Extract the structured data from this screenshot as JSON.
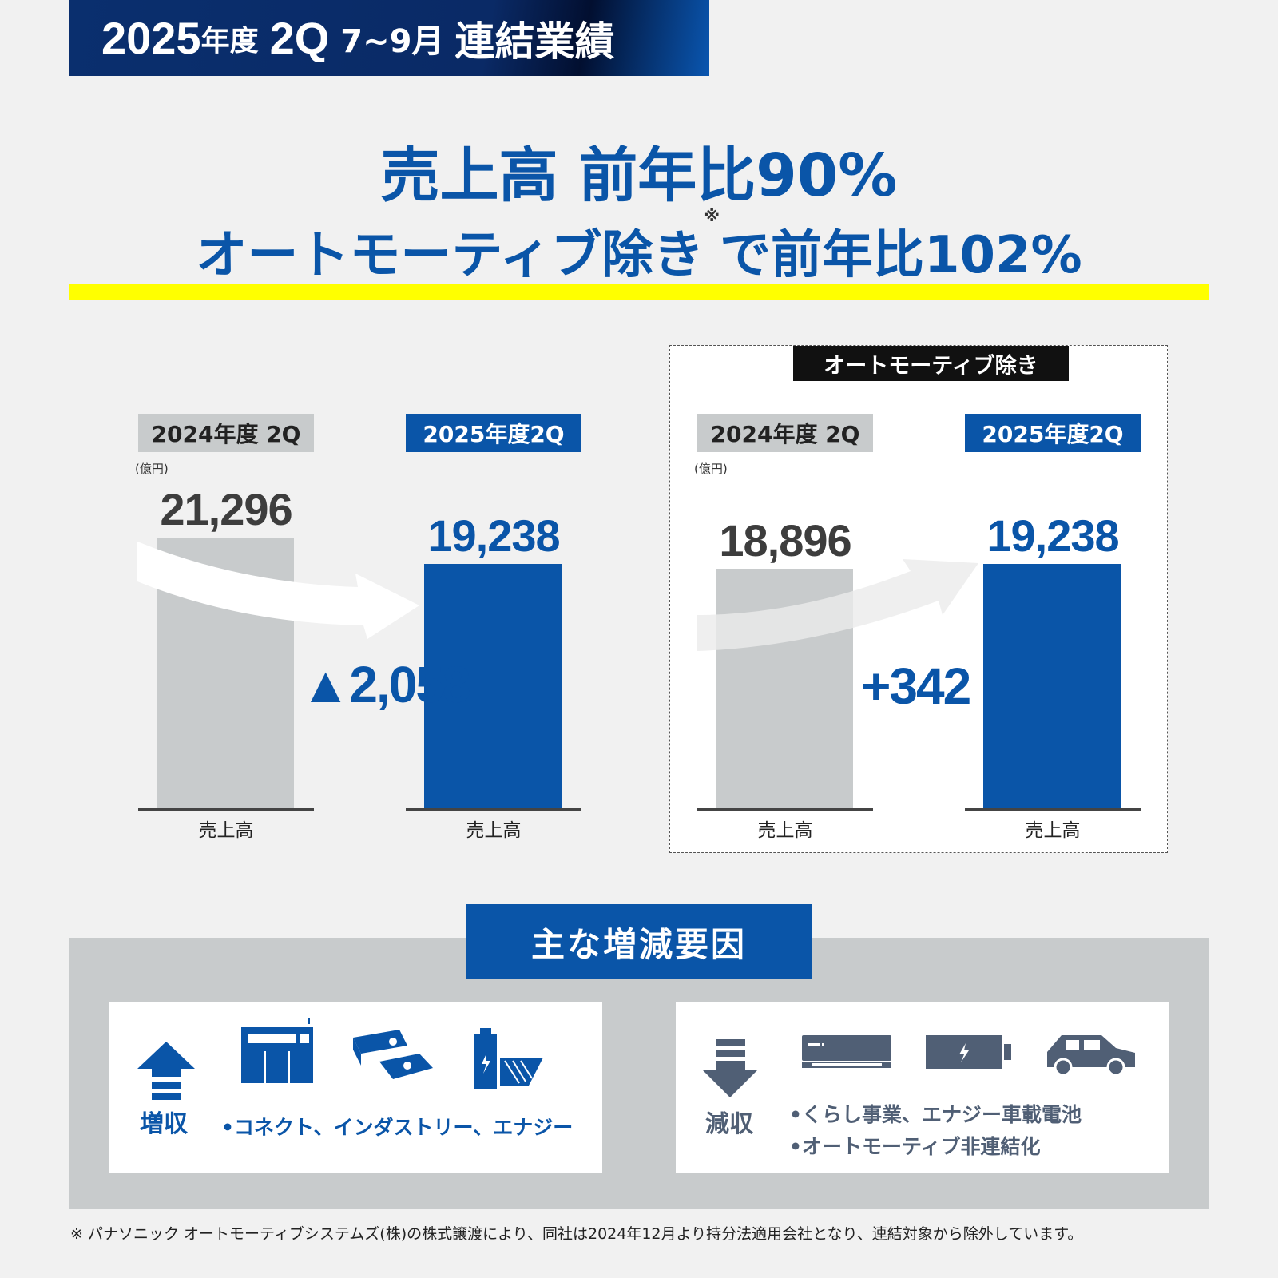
{
  "header": {
    "year": "2025",
    "nendo": "年度",
    "quarter": "2Q",
    "months": "7~9月",
    "title": "連結業績"
  },
  "headline": {
    "line1": "売上高 前年比90%",
    "line2_a": "オートモーティブ除き",
    "line2_mark": "※",
    "line2_b": "で前年比102%"
  },
  "colors": {
    "brand_blue": "#0a55a8",
    "prior_gray": "#c8cbcc",
    "highlight": "#ffff00",
    "decrease_slate": "#505f75"
  },
  "chart_data": [
    {
      "type": "bar",
      "title": "",
      "unit": "(億円)",
      "categories": [
        "2024年度 2Q",
        "2025年度2Q"
      ],
      "axis_labels": [
        "売上高",
        "売上高"
      ],
      "values": [
        21296,
        19238
      ],
      "value_labels": [
        "21,296",
        "19,238"
      ],
      "difference_label": "▲2,058",
      "arrow": "down"
    },
    {
      "type": "bar",
      "title": "オートモーティブ除き",
      "unit": "(億円)",
      "categories": [
        "2024年度 2Q",
        "2025年度2Q"
      ],
      "axis_labels": [
        "売上高",
        "売上高"
      ],
      "values": [
        18896,
        19238
      ],
      "value_labels": [
        "18,896",
        "19,238"
      ],
      "difference_label": "+342",
      "arrow": "up"
    }
  ],
  "factors": {
    "title": "主な増減要因",
    "increase": {
      "label": "増収",
      "items": [
        "•コネクト、インダストリー、エナジー"
      ],
      "icons": [
        "arrow-up-icon",
        "factory-machine-icon",
        "battery-module-icon",
        "battery-pack-icon"
      ]
    },
    "decrease": {
      "label": "減収",
      "items": [
        "•くらし事業、エナジー車載電池",
        "•オートモーティブ非連結化"
      ],
      "icons": [
        "arrow-down-icon",
        "air-conditioner-icon",
        "battery-icon",
        "car-icon"
      ]
    }
  },
  "footnote": "※ パナソニック オートモーティブシステムズ(株)の株式譲渡により、同社は2024年12月より持分法適用会社となり、連結対象から除外しています。"
}
